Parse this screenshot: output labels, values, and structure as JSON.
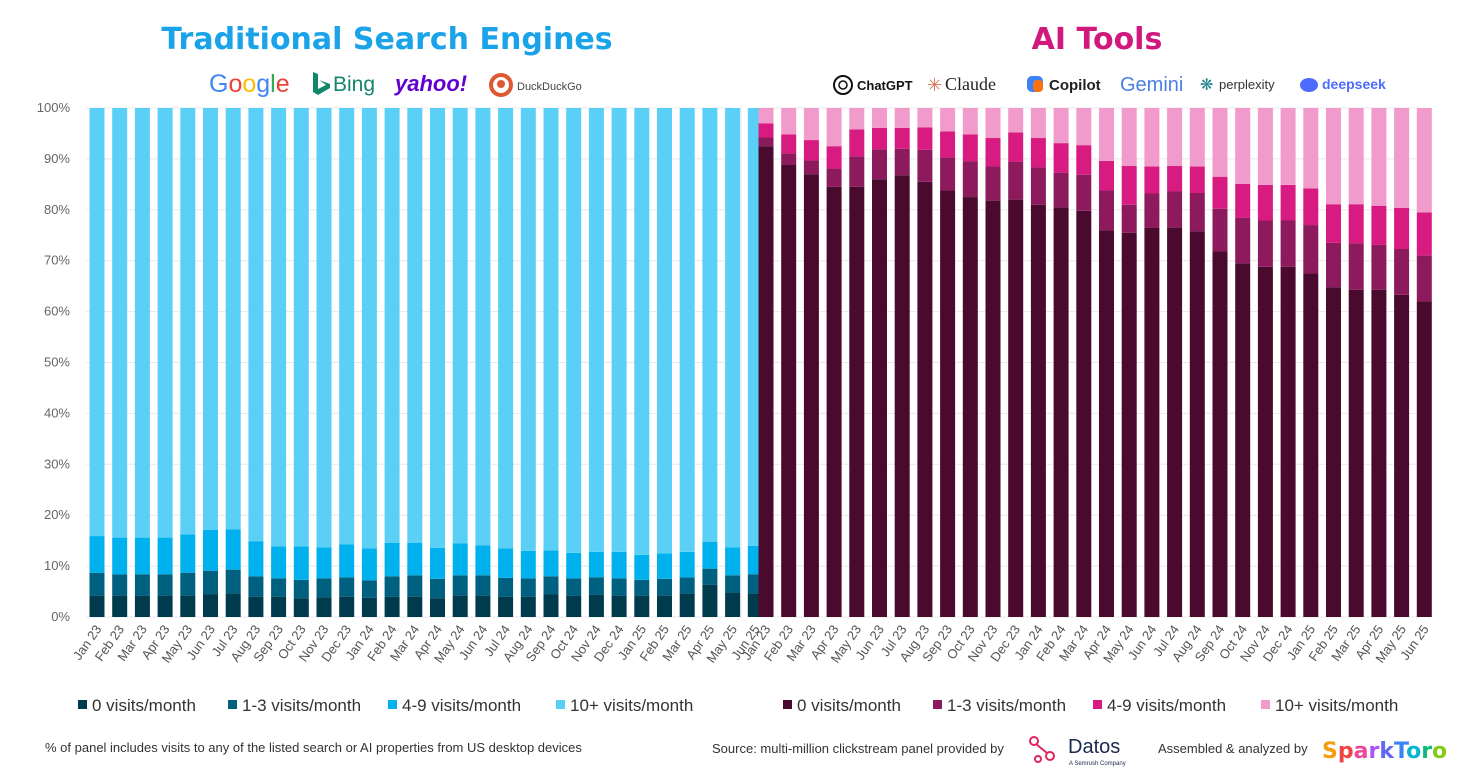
{
  "colors": {
    "search_title": "#1aa3e8",
    "ai_title": "#d1197d",
    "search_series": [
      "#003a4d",
      "#00607f",
      "#00b1ee",
      "#5bd0f7"
    ],
    "ai_series": [
      "#4a0a2e",
      "#8c1a5c",
      "#d81b80",
      "#f19bcd"
    ]
  },
  "logos": {
    "search": [
      {
        "text": "Google",
        "icon": "google-logo"
      },
      {
        "text": "Bing",
        "icon": "bing-logo"
      },
      {
        "text": "yahoo!",
        "icon": "yahoo-logo"
      },
      {
        "text": "DuckDuckGo",
        "icon": "duckduckgo-logo"
      }
    ],
    "ai": [
      {
        "text": "ChatGPT",
        "icon": "chatgpt-logo"
      },
      {
        "text": "Claude",
        "icon": "claude-logo"
      },
      {
        "text": "Copilot",
        "icon": "copilot-logo"
      },
      {
        "text": "Gemini",
        "icon": "gemini-logo"
      },
      {
        "text": "perplexity",
        "icon": "perplexity-logo"
      },
      {
        "text": "deepseek",
        "icon": "deepseek-logo"
      }
    ]
  },
  "footer": {
    "note": "% of panel includes visits to any of the listed search or AI properties from US desktop devices",
    "source_prefix": "Source: multi-million clickstream panel provided by",
    "datos": "Datos",
    "datos_sub": "A Semrush Company",
    "assembled": "Assembled & analyzed by",
    "sparktoro": "SparkToro"
  },
  "chart_data": [
    {
      "type": "bar",
      "stacked": true,
      "title": "Traditional Search Engines",
      "categories": [
        "Jan 23",
        "Feb 23",
        "Mar 23",
        "Apr 23",
        "May 23",
        "Jun 23",
        "Jul 23",
        "Aug 23",
        "Sep 23",
        "Oct 23",
        "Nov 23",
        "Dec 23",
        "Jan 24",
        "Feb 24",
        "Mar 24",
        "Apr 24",
        "May 24",
        "Jun 24",
        "Jul 24",
        "Aug 24",
        "Sep 24",
        "Oct 24",
        "Nov 24",
        "Dec 24",
        "Jan 25",
        "Feb 25",
        "Mar 25",
        "Apr 25",
        "May 25",
        "Jun 25"
      ],
      "ylim": [
        0,
        100
      ],
      "yticks": [
        "0%",
        "10%",
        "20%",
        "30%",
        "40%",
        "50%",
        "60%",
        "70%",
        "80%",
        "90%",
        "100%"
      ],
      "legend_position": "bottom",
      "series": [
        {
          "name": "0 visits/month",
          "values": [
            4.2,
            4.2,
            4.2,
            4.2,
            4.2,
            4.5,
            4.6,
            4.0,
            4.0,
            3.7,
            3.9,
            4.0,
            3.8,
            4.0,
            4.0,
            3.7,
            4.2,
            4.2,
            4.0,
            4.0,
            4.5,
            4.2,
            4.4,
            4.2,
            4.2,
            4.2,
            4.6,
            6.3,
            4.8,
            4.6
          ]
        },
        {
          "name": "1-3 visits/month",
          "values": [
            4.5,
            4.2,
            4.2,
            4.2,
            4.5,
            4.6,
            4.7,
            4.0,
            3.6,
            3.6,
            3.7,
            3.8,
            3.4,
            4.0,
            4.2,
            3.8,
            4.0,
            4.0,
            3.7,
            3.6,
            3.5,
            3.4,
            3.4,
            3.4,
            3.1,
            3.3,
            3.2,
            3.2,
            3.4,
            3.8
          ]
        },
        {
          "name": "4-9 visits/month",
          "values": [
            7.2,
            7.2,
            7.2,
            7.2,
            7.5,
            8.0,
            7.9,
            6.9,
            6.3,
            6.6,
            6.1,
            6.5,
            6.3,
            6.6,
            6.4,
            6.1,
            6.3,
            5.9,
            5.8,
            5.4,
            5.1,
            5.0,
            5.0,
            5.2,
            4.9,
            5.0,
            5.0,
            5.3,
            5.5,
            5.6
          ]
        },
        {
          "name": "10+ visits/month",
          "values": [
            84.1,
            84.4,
            84.4,
            84.4,
            83.8,
            82.9,
            82.8,
            85.1,
            86.1,
            86.1,
            86.3,
            85.7,
            86.5,
            85.4,
            85.4,
            86.4,
            85.5,
            85.9,
            86.5,
            87.0,
            86.9,
            87.4,
            87.2,
            87.2,
            87.8,
            87.5,
            87.2,
            85.2,
            86.3,
            86.0
          ]
        }
      ]
    },
    {
      "type": "bar",
      "stacked": true,
      "title": "AI Tools",
      "categories": [
        "Jan 23",
        "Feb 23",
        "Mar 23",
        "Apr 23",
        "May 23",
        "Jun 23",
        "Jul 23",
        "Aug 23",
        "Sep 23",
        "Oct 23",
        "Nov 23",
        "Dec 23",
        "Jan 24",
        "Feb 24",
        "Mar 24",
        "Apr 24",
        "May 24",
        "Jun 24",
        "Jul 24",
        "Aug 24",
        "Sep 24",
        "Oct 24",
        "Nov 24",
        "Dec 24",
        "Jan 25",
        "Feb 25",
        "Mar 25",
        "Apr 25",
        "May 25",
        "Jun 25"
      ],
      "ylim": [
        0,
        100
      ],
      "yticks": [
        "0%",
        "10%",
        "20%",
        "30%",
        "40%",
        "50%",
        "60%",
        "70%",
        "80%",
        "90%",
        "100%"
      ],
      "legend_position": "bottom",
      "series": [
        {
          "name": "0 visits/month",
          "values": [
            92.5,
            88.8,
            87.0,
            84.5,
            84.5,
            86.0,
            86.8,
            85.5,
            83.8,
            82.5,
            81.8,
            82.0,
            81.0,
            80.5,
            79.8,
            76.0,
            75.5,
            76.5,
            76.5,
            75.8,
            71.8,
            69.5,
            68.8,
            68.8,
            67.5,
            64.8,
            64.3,
            64.3,
            63.3,
            62.0
          ]
        },
        {
          "name": "1-3 visits/month",
          "values": [
            1.7,
            2.3,
            2.7,
            3.6,
            6.0,
            5.9,
            5.2,
            6.3,
            6.5,
            7.0,
            6.7,
            7.4,
            7.3,
            6.8,
            7.1,
            7.8,
            5.5,
            6.7,
            7.1,
            7.5,
            8.4,
            8.9,
            9.1,
            9.1,
            9.5,
            8.7,
            9.1,
            8.8,
            9.0,
            9.0
          ]
        },
        {
          "name": "4-9 visits/month",
          "values": [
            2.8,
            3.7,
            4.0,
            4.4,
            5.3,
            4.2,
            4.1,
            4.4,
            5.1,
            5.3,
            5.6,
            5.8,
            5.8,
            5.8,
            5.8,
            5.8,
            7.6,
            5.3,
            5.0,
            5.2,
            6.3,
            6.7,
            7.0,
            7.0,
            7.2,
            7.6,
            7.7,
            7.7,
            8.1,
            8.5
          ]
        },
        {
          "name": "10+ visits/month",
          "values": [
            3.0,
            5.2,
            6.3,
            7.5,
            4.2,
            3.9,
            3.9,
            3.8,
            4.6,
            5.2,
            5.9,
            4.8,
            5.9,
            6.9,
            7.3,
            10.4,
            11.4,
            11.5,
            11.4,
            11.5,
            13.5,
            14.9,
            15.1,
            15.1,
            15.8,
            18.9,
            18.9,
            19.2,
            19.6,
            20.5
          ]
        }
      ]
    }
  ]
}
